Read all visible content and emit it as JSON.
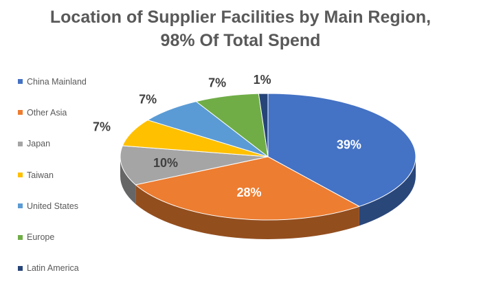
{
  "chart_data": {
    "type": "pie",
    "title": "Location of Supplier Facilities by Main Region,",
    "subtitle": "98% Of Total Spend",
    "legend_position": "left",
    "three_d": true,
    "categories": [
      "China Mainland",
      "Other Asia",
      "Japan",
      "Taiwan",
      "United States",
      "Europe",
      "Latin America"
    ],
    "values": [
      39,
      28,
      10,
      7,
      7,
      7,
      1
    ],
    "labels": [
      "39%",
      "28%",
      "10%",
      "7%",
      "7%",
      "7%",
      "1%"
    ],
    "colors": [
      "#4472C4",
      "#ED7D31",
      "#A5A5A5",
      "#FFC000",
      "#5B9BD5",
      "#70AD47",
      "#264478"
    ],
    "label_colors": [
      "#ffffff",
      "#ffffff",
      "#404040",
      "#404040",
      "#404040",
      "#404040",
      "#404040"
    ]
  }
}
